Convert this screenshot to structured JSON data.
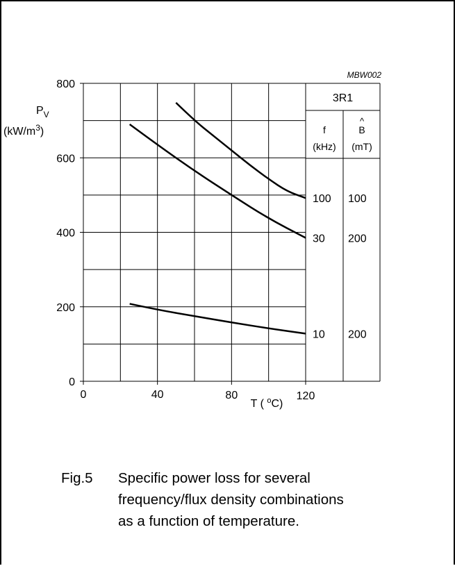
{
  "chart_data": {
    "type": "line",
    "code": "MBW002",
    "material": "3R1",
    "xlabel": "T  (°C)",
    "ylabel": "P",
    "ylabel_sub": "V",
    "yunit": "(kW/m",
    "yunit_sup": "3",
    "yunit_end": ")",
    "xlim": [
      0,
      120
    ],
    "ylim": [
      0,
      800
    ],
    "xticks": [
      "0",
      "40",
      "80",
      "120"
    ],
    "yticks": [
      "0",
      "200",
      "400",
      "600",
      "800"
    ],
    "grid": true,
    "table_headers": {
      "f": "f",
      "f_unit": "(kHz)",
      "B": "B",
      "B_hat": "^",
      "B_unit": "(mT)"
    },
    "series": [
      {
        "f": "100",
        "B": "100",
        "x": [
          50,
          60,
          70,
          80,
          90,
          100,
          110,
          120
        ],
        "y": [
          748,
          700,
          660,
          620,
          580,
          543,
          510,
          492
        ]
      },
      {
        "f": "30",
        "B": "200",
        "x": [
          25,
          40,
          60,
          80,
          100,
          120
        ],
        "y": [
          690,
          635,
          565,
          500,
          437,
          385
        ]
      },
      {
        "f": "10",
        "B": "200",
        "x": [
          25,
          40,
          60,
          80,
          100,
          120
        ],
        "y": [
          208,
          192,
          175,
          158,
          142,
          128
        ]
      }
    ]
  },
  "caption": {
    "fig": "Fig.5",
    "lines": [
      "Specific power loss for several",
      "frequency/flux density combinations",
      "as a function of temperature."
    ]
  }
}
